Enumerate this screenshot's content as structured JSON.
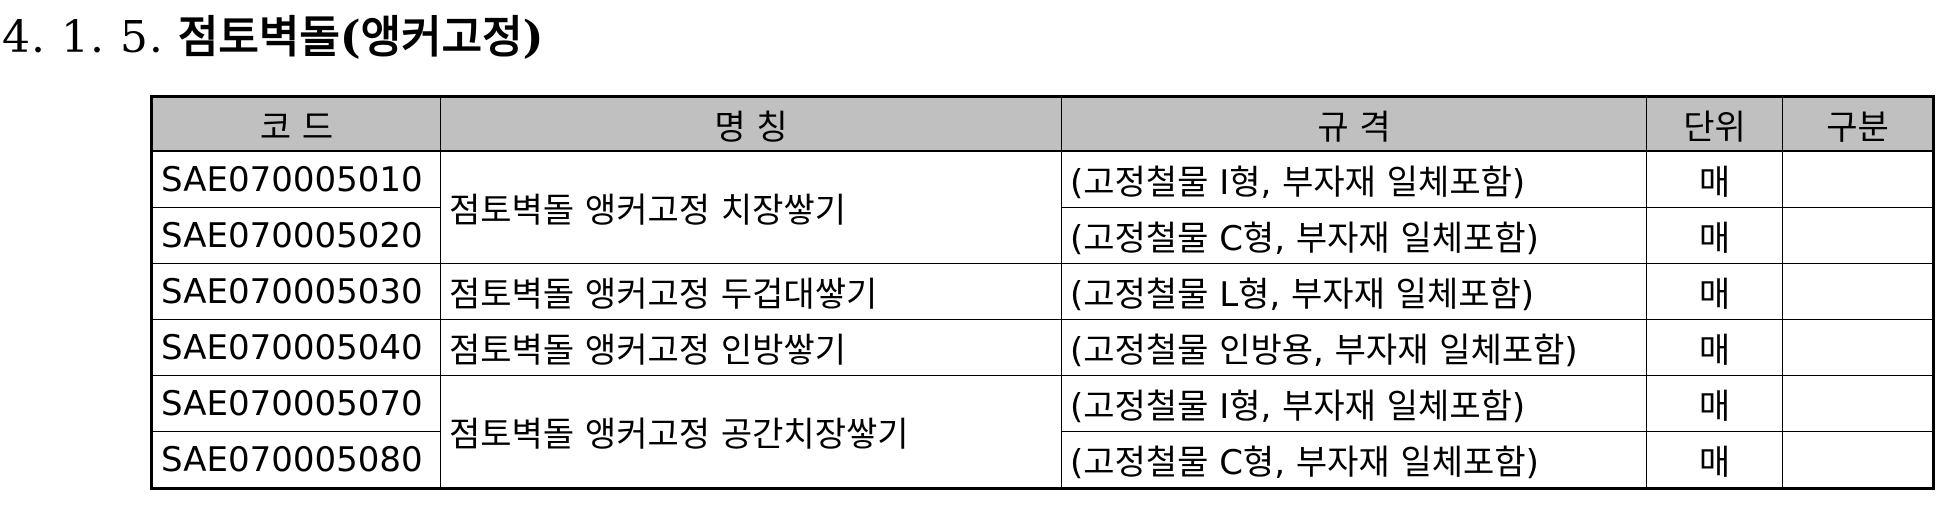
{
  "heading": {
    "number": "4. 1. 5.",
    "title": "점토벽돌(앵커고정)"
  },
  "table": {
    "headers": {
      "code": "코  드",
      "name": "명  칭",
      "spec": "규  격",
      "unit": "단위",
      "class": "구분"
    },
    "rows": [
      {
        "code": "SAE070005010",
        "name": "점토벽돌 앵커고정 치장쌓기",
        "spec": "(고정철물 I형, 부자재 일체포함)",
        "unit": "매",
        "class": ""
      },
      {
        "code": "SAE070005020",
        "spec": "(고정철물 C형, 부자재 일체포함)",
        "unit": "매",
        "class": ""
      },
      {
        "code": "SAE070005030",
        "name": "점토벽돌 앵커고정 두겁대쌓기",
        "spec": "(고정철물 L형, 부자재 일체포함)",
        "unit": "매",
        "class": ""
      },
      {
        "code": "SAE070005040",
        "name": "점토벽돌 앵커고정 인방쌓기",
        "spec": "(고정철물 인방용, 부자재 일체포함)",
        "unit": "매",
        "class": ""
      },
      {
        "code": "SAE070005070",
        "name": "점토벽돌 앵커고정 공간치장쌓기",
        "spec": "(고정철물 I형, 부자재 일체포함)",
        "unit": "매",
        "class": ""
      },
      {
        "code": "SAE070005080",
        "spec": "(고정철물 C형, 부자재 일체포함)",
        "unit": "매",
        "class": ""
      }
    ]
  }
}
